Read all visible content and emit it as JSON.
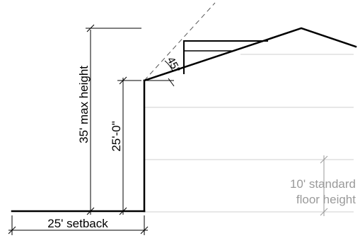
{
  "diagram": {
    "labels": {
      "max_height": "35' max height",
      "wall_height": "25'-0\"",
      "setback": "25' setback",
      "angle": "45°",
      "floor_height_line1": "10' standard",
      "floor_height_line2": "floor height"
    },
    "colors": {
      "ink": "#000000",
      "muted": "#9a9a9a",
      "faint": "#cfcfcf"
    }
  }
}
